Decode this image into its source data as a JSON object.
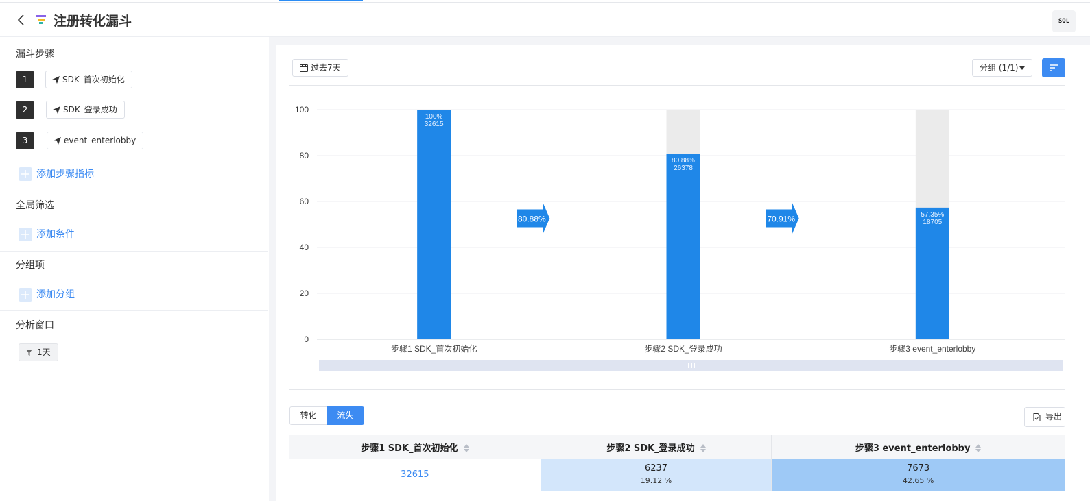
{
  "header": {
    "title": "注册转化漏斗",
    "sql_label": "SQL"
  },
  "sidebar": {
    "steps_title": "漏斗步骤",
    "steps": [
      {
        "num": "1",
        "event": "SDK_首次初始化"
      },
      {
        "num": "2",
        "event": "SDK_登录成功"
      },
      {
        "num": "3",
        "event": "event_enterlobby"
      }
    ],
    "add_step": "添加步骤指标",
    "filter_title": "全局筛选",
    "add_condition": "添加条件",
    "group_title": "分组项",
    "add_group": "添加分组",
    "window_title": "分析窗口",
    "window_value": "1天"
  },
  "toolbar": {
    "date_range": "过去7天",
    "group_select": "分组 (1/1)"
  },
  "chart_data": {
    "type": "bar",
    "categories": [
      "步骤1 SDK_首次初始化",
      "步骤2 SDK_登录成功",
      "步骤3 event_enterlobby"
    ],
    "values": [
      100,
      80.88,
      57.35
    ],
    "counts": [
      32615,
      26378,
      18705
    ],
    "value_labels": [
      "100%",
      "80.88%",
      "57.35%"
    ],
    "count_labels": [
      "32615",
      "26378",
      "18705"
    ],
    "step_conversion": [
      "80.88%",
      "70.91%"
    ],
    "yticks": [
      "0",
      "20",
      "40",
      "60",
      "80",
      "100"
    ],
    "ylim": [
      0,
      100
    ],
    "grid": true,
    "colors": {
      "bar": "#1f87e8",
      "background_bar": "#ebebeb",
      "arrow": "#1f87e8"
    }
  },
  "tabs": {
    "conversion": "转化",
    "churn": "流失",
    "active": "churn"
  },
  "export_label": "导出",
  "table": {
    "headers": [
      "步骤1 SDK_首次初始化",
      "步骤2 SDK_登录成功",
      "步骤3 event_enterlobby"
    ],
    "row": [
      {
        "value": "32615",
        "pct": ""
      },
      {
        "value": "6237",
        "pct": "19.12 %"
      },
      {
        "value": "7673",
        "pct": "42.65 %"
      }
    ]
  },
  "colors": {
    "accent": "#3d8bf2",
    "cell_light": "#d3e6fb",
    "cell_strong": "#9ec9f6"
  }
}
